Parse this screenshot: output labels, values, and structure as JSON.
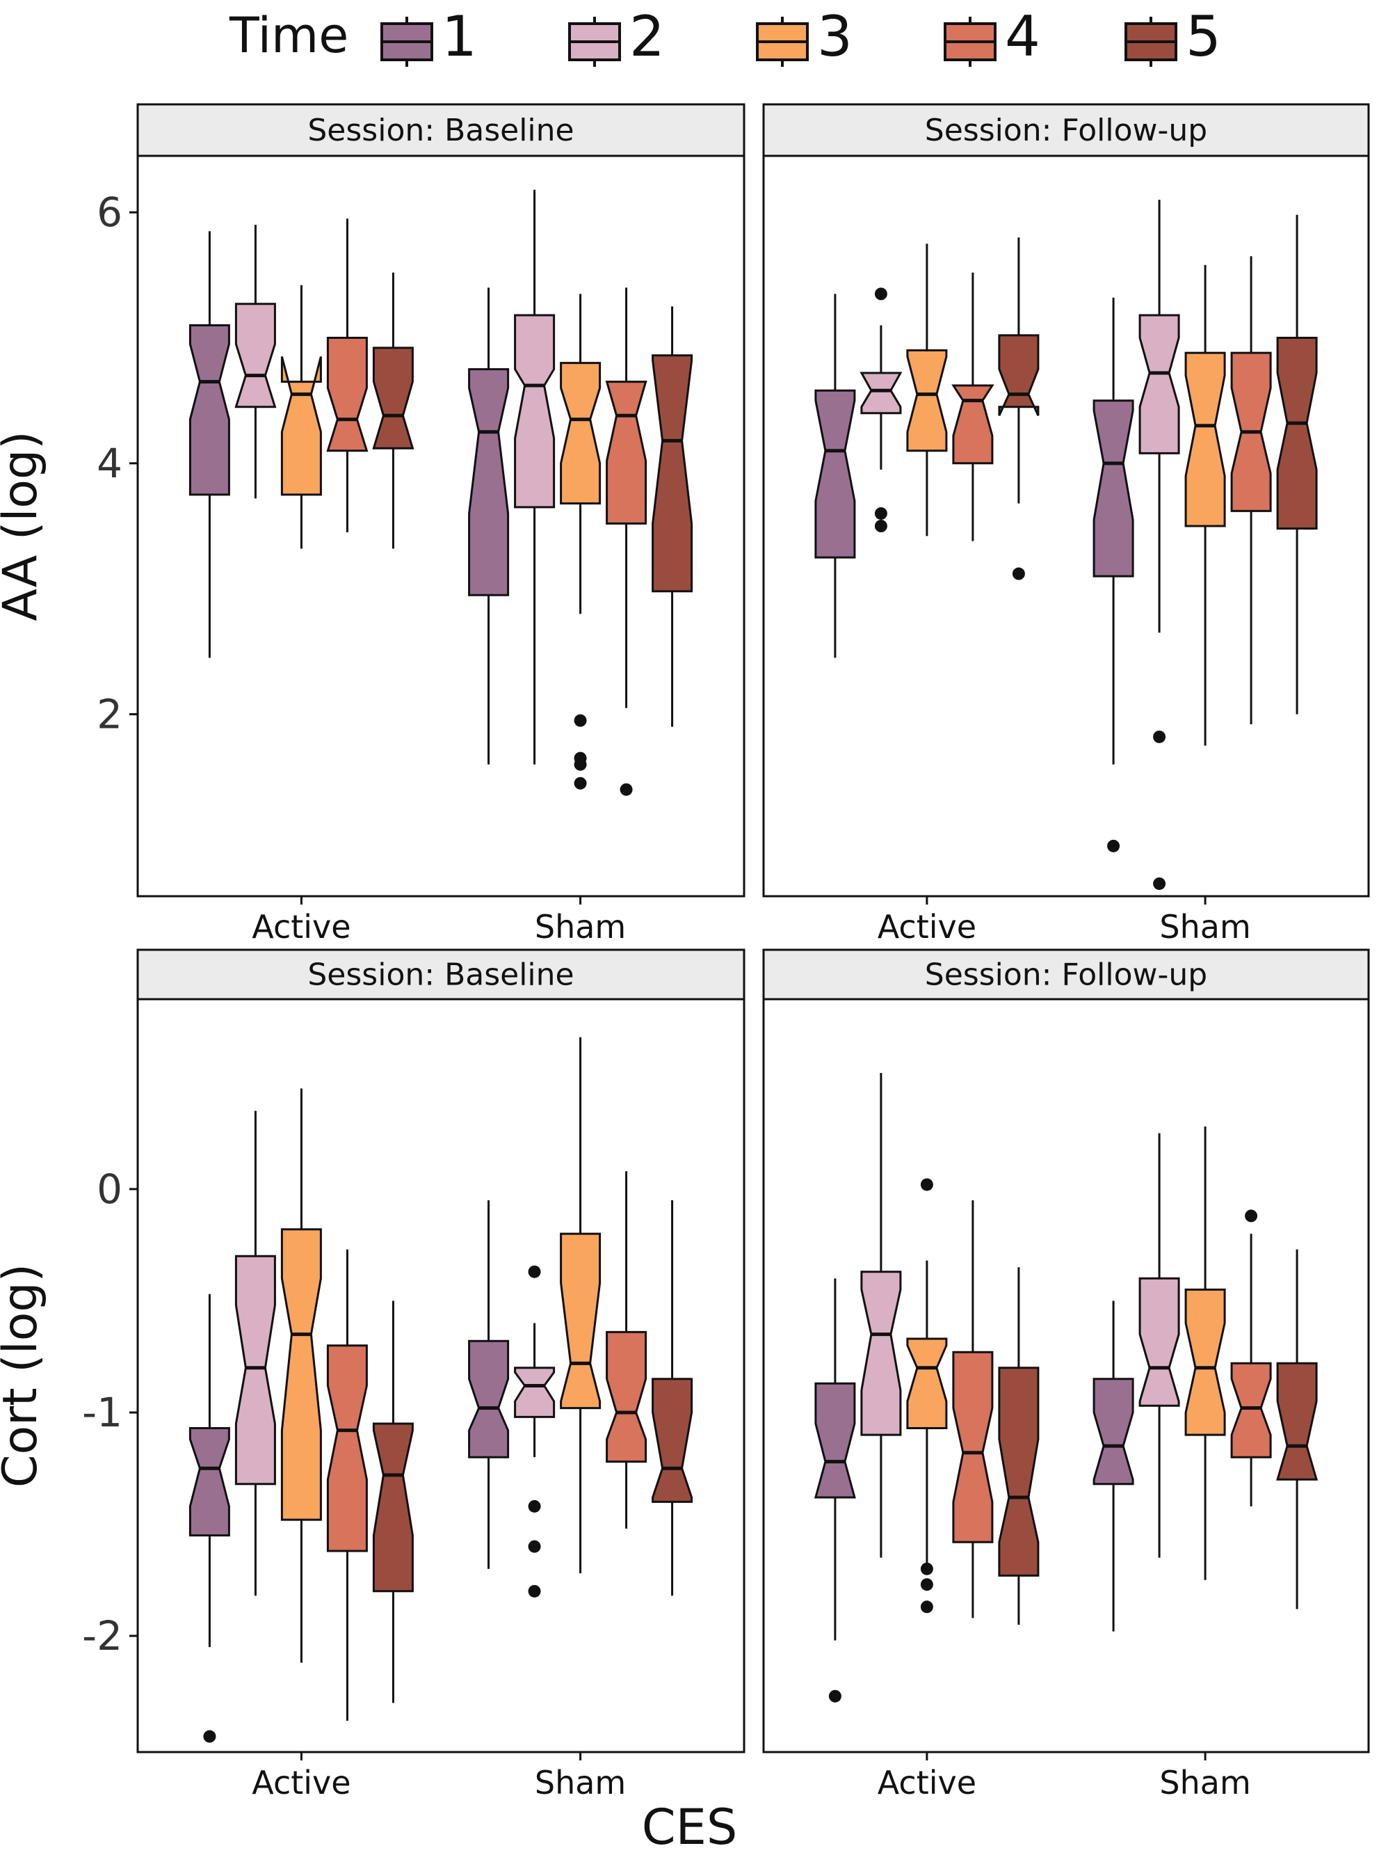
{
  "legend": {
    "title": "Time",
    "items": [
      {
        "label": "1",
        "color": "#9a7091"
      },
      {
        "label": "2",
        "color": "#dab0c4"
      },
      {
        "label": "3",
        "color": "#f9a55e"
      },
      {
        "label": "4",
        "color": "#d8735c"
      },
      {
        "label": "5",
        "color": "#9a4d3e"
      }
    ]
  },
  "x_axis_title": "CES",
  "chart_data": [
    {
      "type": "boxplot",
      "row": 0,
      "col": 0,
      "facet_label": "Session: Baseline",
      "ylabel": "AA (log)",
      "ylim": [
        0.55,
        6.45
      ],
      "yticks": [
        2,
        4,
        6
      ],
      "categories": [
        "Active",
        "Sham"
      ],
      "series": [
        {
          "name": "1",
          "groups": [
            {
              "category": "Active",
              "whisker_low": 2.45,
              "q1": 3.75,
              "median": 4.65,
              "q3": 5.1,
              "whisker_high": 5.85,
              "notch_low": 4.35,
              "notch_high": 4.95,
              "outliers": []
            },
            {
              "category": "Sham",
              "whisker_low": 1.6,
              "q1": 2.95,
              "median": 4.25,
              "q3": 4.75,
              "whisker_high": 5.4,
              "notch_low": 3.6,
              "notch_high": 4.6,
              "outliers": []
            }
          ]
        },
        {
          "name": "2",
          "groups": [
            {
              "category": "Active",
              "whisker_low": 3.72,
              "q1": 4.45,
              "median": 4.7,
              "q3": 5.27,
              "whisker_high": 5.9,
              "notch_low": 4.45,
              "notch_high": 4.95,
              "outliers": []
            },
            {
              "category": "Sham",
              "whisker_low": 1.6,
              "q1": 3.65,
              "median": 4.62,
              "q3": 5.18,
              "whisker_high": 6.18,
              "notch_low": 4.2,
              "notch_high": 4.75,
              "outliers": []
            }
          ]
        },
        {
          "name": "3",
          "groups": [
            {
              "category": "Active",
              "whisker_low": 3.32,
              "q1": 3.75,
              "median": 4.55,
              "q3": 4.65,
              "whisker_high": 5.42,
              "notch_low": 4.25,
              "notch_high": 4.85,
              "outliers": []
            },
            {
              "category": "Sham",
              "whisker_low": 2.8,
              "q1": 3.68,
              "median": 4.35,
              "q3": 4.8,
              "whisker_high": 5.35,
              "notch_low": 4.0,
              "notch_high": 4.6,
              "outliers": [
                1.95,
                1.65,
                1.6,
                1.45
              ]
            }
          ]
        },
        {
          "name": "4",
          "groups": [
            {
              "category": "Active",
              "whisker_low": 3.45,
              "q1": 4.1,
              "median": 4.35,
              "q3": 5.0,
              "whisker_high": 5.95,
              "notch_low": 4.1,
              "notch_high": 4.6,
              "outliers": []
            },
            {
              "category": "Sham",
              "whisker_low": 2.05,
              "q1": 3.52,
              "median": 4.38,
              "q3": 4.65,
              "whisker_high": 5.4,
              "notch_low": 4.02,
              "notch_high": 4.65,
              "outliers": [
                1.4
              ]
            }
          ]
        },
        {
          "name": "5",
          "groups": [
            {
              "category": "Active",
              "whisker_low": 3.32,
              "q1": 4.12,
              "median": 4.38,
              "q3": 4.92,
              "whisker_high": 5.52,
              "notch_low": 4.12,
              "notch_high": 4.65,
              "outliers": []
            },
            {
              "category": "Sham",
              "whisker_low": 1.9,
              "q1": 2.98,
              "median": 4.18,
              "q3": 4.86,
              "whisker_high": 5.25,
              "notch_low": 3.52,
              "notch_high": 4.82,
              "outliers": []
            }
          ]
        }
      ]
    },
    {
      "type": "boxplot",
      "row": 0,
      "col": 1,
      "facet_label": "Session: Follow-up",
      "ylabel": "AA (log)",
      "ylim": [
        0.55,
        6.45
      ],
      "yticks": [
        2,
        4,
        6
      ],
      "categories": [
        "Active",
        "Sham"
      ],
      "series": [
        {
          "name": "1",
          "groups": [
            {
              "category": "Active",
              "whisker_low": 2.45,
              "q1": 3.25,
              "median": 4.1,
              "q3": 4.58,
              "whisker_high": 5.35,
              "notch_low": 3.7,
              "notch_high": 4.5,
              "outliers": []
            },
            {
              "category": "Sham",
              "whisker_low": 1.6,
              "q1": 3.1,
              "median": 4.0,
              "q3": 4.5,
              "whisker_high": 5.32,
              "notch_low": 3.55,
              "notch_high": 4.42,
              "outliers": [
                0.95
              ]
            }
          ]
        },
        {
          "name": "2",
          "groups": [
            {
              "category": "Active",
              "whisker_low": 3.95,
              "q1": 4.4,
              "median": 4.58,
              "q3": 4.72,
              "whisker_high": 5.1,
              "notch_low": 4.45,
              "notch_high": 4.72,
              "outliers": [
                5.35,
                3.6,
                3.5
              ]
            },
            {
              "category": "Sham",
              "whisker_low": 2.65,
              "q1": 4.08,
              "median": 4.72,
              "q3": 5.18,
              "whisker_high": 6.1,
              "notch_low": 4.45,
              "notch_high": 5.0,
              "outliers": [
                1.82,
                0.65
              ]
            }
          ]
        },
        {
          "name": "3",
          "groups": [
            {
              "category": "Active",
              "whisker_low": 3.42,
              "q1": 4.1,
              "median": 4.55,
              "q3": 4.9,
              "whisker_high": 5.75,
              "notch_low": 4.25,
              "notch_high": 4.85,
              "outliers": []
            },
            {
              "category": "Sham",
              "whisker_low": 1.75,
              "q1": 3.5,
              "median": 4.3,
              "q3": 4.88,
              "whisker_high": 5.58,
              "notch_low": 3.9,
              "notch_high": 4.7,
              "outliers": []
            }
          ]
        },
        {
          "name": "4",
          "groups": [
            {
              "category": "Active",
              "whisker_low": 3.38,
              "q1": 4.0,
              "median": 4.5,
              "q3": 4.62,
              "whisker_high": 5.52,
              "notch_low": 4.22,
              "notch_high": 4.62,
              "outliers": []
            },
            {
              "category": "Sham",
              "whisker_low": 1.92,
              "q1": 3.62,
              "median": 4.25,
              "q3": 4.88,
              "whisker_high": 5.65,
              "notch_low": 3.92,
              "notch_high": 4.6,
              "outliers": []
            }
          ]
        },
        {
          "name": "5",
          "groups": [
            {
              "category": "Active",
              "whisker_low": 3.68,
              "q1": 4.45,
              "median": 4.55,
              "q3": 5.02,
              "whisker_high": 5.8,
              "notch_low": 4.38,
              "notch_high": 4.75,
              "outliers": [
                3.12
              ]
            },
            {
              "category": "Sham",
              "whisker_low": 2.0,
              "q1": 3.48,
              "median": 4.32,
              "q3": 5.0,
              "whisker_high": 5.98,
              "notch_low": 3.95,
              "notch_high": 4.72,
              "outliers": []
            }
          ]
        }
      ]
    },
    {
      "type": "boxplot",
      "row": 1,
      "col": 0,
      "facet_label": "Session: Baseline",
      "ylabel": "Cort (log)",
      "ylim": [
        -2.52,
        0.85
      ],
      "yticks": [
        -2,
        -1,
        0
      ],
      "categories": [
        "Active",
        "Sham"
      ],
      "series": [
        {
          "name": "1",
          "groups": [
            {
              "category": "Active",
              "whisker_low": -2.05,
              "q1": -1.55,
              "median": -1.25,
              "q3": -1.07,
              "whisker_high": -0.47,
              "notch_low": -1.42,
              "notch_high": -1.12,
              "outliers": [
                -2.45
              ]
            },
            {
              "category": "Sham",
              "whisker_low": -1.7,
              "q1": -1.2,
              "median": -0.98,
              "q3": -0.68,
              "whisker_high": -0.05,
              "notch_low": -1.08,
              "notch_high": -0.85,
              "outliers": []
            }
          ]
        },
        {
          "name": "2",
          "groups": [
            {
              "category": "Active",
              "whisker_low": -1.82,
              "q1": -1.32,
              "median": -0.8,
              "q3": -0.3,
              "whisker_high": 0.35,
              "notch_low": -1.05,
              "notch_high": -0.52,
              "outliers": []
            },
            {
              "category": "Sham",
              "whisker_low": -1.2,
              "q1": -1.02,
              "median": -0.88,
              "q3": -0.8,
              "whisker_high": -0.6,
              "notch_low": -0.95,
              "notch_high": -0.82,
              "outliers": [
                -0.37,
                -1.42,
                -1.6,
                -1.8
              ]
            }
          ]
        },
        {
          "name": "3",
          "groups": [
            {
              "category": "Active",
              "whisker_low": -2.12,
              "q1": -1.48,
              "median": -0.65,
              "q3": -0.18,
              "whisker_high": 0.45,
              "notch_low": -1.08,
              "notch_high": -0.4,
              "outliers": []
            },
            {
              "category": "Sham",
              "whisker_low": -1.72,
              "q1": -0.98,
              "median": -0.78,
              "q3": -0.2,
              "whisker_high": 0.68,
              "notch_low": -0.95,
              "notch_high": -0.42,
              "outliers": []
            }
          ]
        },
        {
          "name": "4",
          "groups": [
            {
              "category": "Active",
              "whisker_low": -2.38,
              "q1": -1.62,
              "median": -1.08,
              "q3": -0.7,
              "whisker_high": -0.27,
              "notch_low": -1.3,
              "notch_high": -0.88,
              "outliers": []
            },
            {
              "category": "Sham",
              "whisker_low": -1.52,
              "q1": -1.22,
              "median": -1.0,
              "q3": -0.64,
              "whisker_high": 0.08,
              "notch_low": -1.12,
              "notch_high": -0.85,
              "outliers": []
            }
          ]
        },
        {
          "name": "5",
          "groups": [
            {
              "category": "Active",
              "whisker_low": -2.3,
              "q1": -1.8,
              "median": -1.28,
              "q3": -1.05,
              "whisker_high": -0.5,
              "notch_low": -1.55,
              "notch_high": -1.08,
              "outliers": []
            },
            {
              "category": "Sham",
              "whisker_low": -1.82,
              "q1": -1.4,
              "median": -1.25,
              "q3": -0.85,
              "whisker_high": -0.05,
              "notch_low": -1.38,
              "notch_high": -1.0,
              "outliers": []
            }
          ]
        }
      ]
    },
    {
      "type": "boxplot",
      "row": 1,
      "col": 1,
      "facet_label": "Session: Follow-up",
      "ylabel": "Cort (log)",
      "ylim": [
        -2.52,
        0.85
      ],
      "yticks": [
        -2,
        -1,
        0
      ],
      "categories": [
        "Active",
        "Sham"
      ],
      "series": [
        {
          "name": "1",
          "groups": [
            {
              "category": "Active",
              "whisker_low": -2.02,
              "q1": -1.38,
              "median": -1.22,
              "q3": -0.87,
              "whisker_high": -0.4,
              "notch_low": -1.38,
              "notch_high": -1.05,
              "outliers": [
                -2.27
              ]
            },
            {
              "category": "Sham",
              "whisker_low": -1.98,
              "q1": -1.32,
              "median": -1.15,
              "q3": -0.85,
              "whisker_high": -0.5,
              "notch_low": -1.3,
              "notch_high": -1.0,
              "outliers": []
            }
          ]
        },
        {
          "name": "2",
          "groups": [
            {
              "category": "Active",
              "whisker_low": -1.65,
              "q1": -1.1,
              "median": -0.65,
              "q3": -0.37,
              "whisker_high": 0.52,
              "notch_low": -0.9,
              "notch_high": -0.45,
              "outliers": []
            },
            {
              "category": "Sham",
              "whisker_low": -1.65,
              "q1": -0.97,
              "median": -0.8,
              "q3": -0.4,
              "whisker_high": 0.25,
              "notch_low": -0.95,
              "notch_high": -0.65,
              "outliers": []
            }
          ]
        },
        {
          "name": "3",
          "groups": [
            {
              "category": "Active",
              "whisker_low": -1.68,
              "q1": -1.07,
              "median": -0.8,
              "q3": -0.67,
              "whisker_high": -0.32,
              "notch_low": -0.95,
              "notch_high": -0.7,
              "outliers": [
                0.02,
                -1.7,
                -1.77,
                -1.87
              ]
            },
            {
              "category": "Sham",
              "whisker_low": -1.75,
              "q1": -1.1,
              "median": -0.8,
              "q3": -0.45,
              "whisker_high": 0.28,
              "notch_low": -1.0,
              "notch_high": -0.6,
              "outliers": []
            }
          ]
        },
        {
          "name": "4",
          "groups": [
            {
              "category": "Active",
              "whisker_low": -1.92,
              "q1": -1.58,
              "median": -1.18,
              "q3": -0.73,
              "whisker_high": -0.05,
              "notch_low": -1.4,
              "notch_high": -0.98,
              "outliers": []
            },
            {
              "category": "Sham",
              "whisker_low": -1.42,
              "q1": -1.2,
              "median": -0.98,
              "q3": -0.78,
              "whisker_high": -0.2,
              "notch_low": -1.1,
              "notch_high": -0.85,
              "outliers": [
                -0.12
              ]
            }
          ]
        },
        {
          "name": "5",
          "groups": [
            {
              "category": "Active",
              "whisker_low": -1.95,
              "q1": -1.73,
              "median": -1.38,
              "q3": -0.8,
              "whisker_high": -0.35,
              "notch_low": -1.58,
              "notch_high": -1.12,
              "outliers": []
            },
            {
              "category": "Sham",
              "whisker_low": -1.88,
              "q1": -1.3,
              "median": -1.15,
              "q3": -0.78,
              "whisker_high": -0.27,
              "notch_low": -1.3,
              "notch_high": -0.95,
              "outliers": []
            }
          ]
        }
      ]
    }
  ]
}
